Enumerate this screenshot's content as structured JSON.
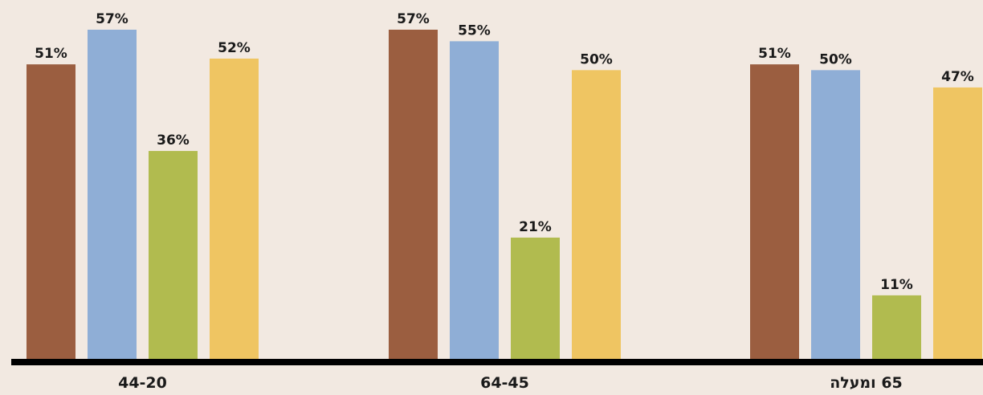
{
  "chart_data": {
    "type": "bar",
    "categories": [
      "44-20",
      "64-45",
      "65 ומעלה"
    ],
    "series": [
      {
        "values": [
          51,
          57,
          51
        ],
        "color": "#9b5e40"
      },
      {
        "values": [
          57,
          55,
          50
        ],
        "color": "#8faed6"
      },
      {
        "values": [
          36,
          21,
          11
        ],
        "color": "#b1bb4f"
      },
      {
        "values": [
          52,
          50,
          47
        ],
        "color": "#efc562"
      }
    ],
    "value_suffix": "%",
    "ylim": [
      0,
      57
    ],
    "grid": false,
    "legend": "none",
    "axis_color": "#000000",
    "background": "#f2e9e1"
  }
}
